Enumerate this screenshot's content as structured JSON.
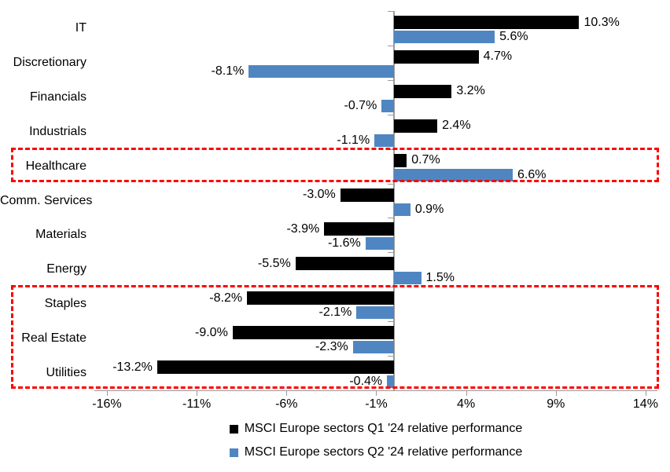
{
  "chart_data": {
    "type": "bar",
    "orientation": "horizontal",
    "title": "",
    "xlabel": "",
    "ylabel": "",
    "categories": [
      "IT",
      "Discretionary",
      "Financials",
      "Industrials",
      "Healthcare",
      "Comm. Services",
      "Materials",
      "Energy",
      "Staples",
      "Real Estate",
      "Utilities"
    ],
    "series": [
      {
        "name": "MSCI Europe sectors Q1 '24 relative performance",
        "color": "#000000",
        "values": [
          10.3,
          4.7,
          3.2,
          2.4,
          0.7,
          -3.0,
          -3.9,
          -5.5,
          -8.2,
          -9.0,
          -13.2
        ]
      },
      {
        "name": "MSCI Europe sectors Q2 '24 relative performance",
        "color": "#4F86C1",
        "values": [
          5.6,
          -8.1,
          -0.7,
          -1.1,
          6.6,
          0.9,
          -1.6,
          1.5,
          -2.1,
          -2.3,
          -0.4
        ]
      }
    ],
    "data_label_format": "percent-one-decimal",
    "x_ticks": [
      {
        "value": -16,
        "label": "-16%"
      },
      {
        "value": -11,
        "label": "-11%"
      },
      {
        "value": -6,
        "label": "-6%"
      },
      {
        "value": -1,
        "label": "-1%"
      },
      {
        "value": 4,
        "label": "4%"
      },
      {
        "value": 9,
        "label": "9%"
      },
      {
        "value": 14,
        "label": "14%"
      }
    ],
    "xlim": [
      -16.7,
      14.66
    ],
    "grid": false,
    "axis_color": "#9A9A9A",
    "legend_position": "bottom-center",
    "highlights": [
      {
        "start_category": "Healthcare",
        "end_category": "Healthcare",
        "color": "#FF0000"
      },
      {
        "start_category": "Staples",
        "end_category": "Utilities",
        "color": "#FF0000"
      }
    ]
  }
}
